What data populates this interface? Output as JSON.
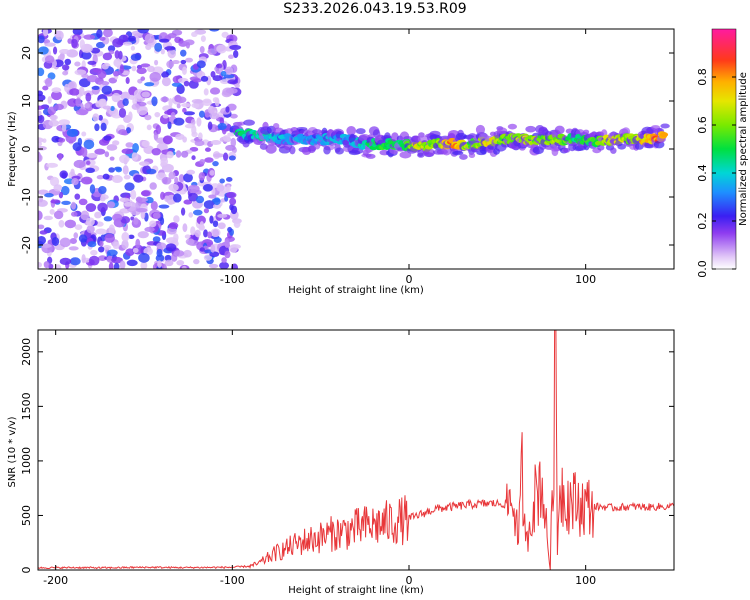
{
  "title": "S233.2026.043.19.53.R09",
  "chart_data": [
    {
      "type": "heatmap",
      "xlabel": "Height of straight line (km)",
      "ylabel": "Frequency (Hz)",
      "xlim": [
        -210,
        150
      ],
      "ylim": [
        -25,
        25
      ],
      "xticks": [
        -200,
        -100,
        0,
        100
      ],
      "yticks": [
        -20,
        -10,
        0,
        10,
        20
      ],
      "colorbar": {
        "label": "Normalized spectral amplitude",
        "range": [
          0,
          1
        ],
        "ticks": [
          0.0,
          0.2,
          0.4,
          0.6,
          0.8
        ],
        "tick_labels": [
          "0.0",
          "0.2",
          "0.4",
          "0.6",
          "0.8"
        ]
      },
      "noise_region": {
        "x": [
          -210,
          -97
        ],
        "freq": [
          -25,
          25
        ],
        "amplitude": [
          0.05,
          0.3
        ]
      },
      "ridge": [
        {
          "x": -97,
          "freq": 3,
          "amp": 0.5
        },
        {
          "x": -85,
          "freq": 3,
          "amp": 0.45
        },
        {
          "x": -75,
          "freq": 2,
          "amp": 0.4
        },
        {
          "x": -65,
          "freq": 2,
          "amp": 0.35
        },
        {
          "x": -55,
          "freq": 2,
          "amp": 0.35
        },
        {
          "x": -45,
          "freq": 2,
          "amp": 0.4
        },
        {
          "x": -35,
          "freq": 2,
          "amp": 0.35
        },
        {
          "x": -25,
          "freq": 1,
          "amp": 0.45
        },
        {
          "x": -15,
          "freq": 1,
          "amp": 0.55
        },
        {
          "x": -5,
          "freq": 1,
          "amp": 0.5
        },
        {
          "x": 5,
          "freq": 0.5,
          "amp": 0.7
        },
        {
          "x": 15,
          "freq": 1,
          "amp": 0.6
        },
        {
          "x": 25,
          "freq": 1,
          "amp": 0.85
        },
        {
          "x": 35,
          "freq": 1,
          "amp": 0.6
        },
        {
          "x": 45,
          "freq": 1.5,
          "amp": 0.75
        },
        {
          "x": 55,
          "freq": 2,
          "amp": 0.6
        },
        {
          "x": 65,
          "freq": 2,
          "amp": 0.7
        },
        {
          "x": 75,
          "freq": 2,
          "amp": 0.6
        },
        {
          "x": 85,
          "freq": 2,
          "amp": 0.65
        },
        {
          "x": 95,
          "freq": 2,
          "amp": 0.5
        },
        {
          "x": 105,
          "freq": 1.5,
          "amp": 0.55
        },
        {
          "x": 115,
          "freq": 2,
          "amp": 0.75
        },
        {
          "x": 125,
          "freq": 2,
          "amp": 0.65
        },
        {
          "x": 135,
          "freq": 2,
          "amp": 0.8
        },
        {
          "x": 145,
          "freq": 2.5,
          "amp": 0.9
        }
      ]
    },
    {
      "type": "line",
      "xlabel": "Height of straight line (km)",
      "ylabel": "SNR (10 * v/v)",
      "xlim": [
        -210,
        150
      ],
      "ylim": [
        0,
        2200
      ],
      "xticks": [
        -200,
        -100,
        0,
        100
      ],
      "yticks": [
        0,
        500,
        1000,
        1500,
        2000
      ],
      "series": [
        {
          "name": "SNR",
          "color": "#e8373a",
          "x": [
            -210,
            -190,
            -170,
            -150,
            -130,
            -110,
            -100,
            -90,
            -85,
            -80,
            -75,
            -70,
            -65,
            -60,
            -55,
            -50,
            -45,
            -40,
            -35,
            -30,
            -25,
            -20,
            -15,
            -10,
            -5,
            0,
            5,
            10,
            15,
            20,
            25,
            30,
            35,
            40,
            45,
            50,
            55,
            58,
            60,
            62,
            64,
            66,
            70,
            75,
            80,
            82,
            83,
            84,
            85,
            88,
            90,
            95,
            100,
            105,
            110,
            115,
            120,
            125,
            130,
            135,
            140,
            145,
            150
          ],
          "values": [
            20,
            22,
            20,
            25,
            22,
            24,
            25,
            35,
            60,
            110,
            160,
            190,
            230,
            260,
            280,
            300,
            330,
            340,
            360,
            380,
            400,
            410,
            420,
            440,
            450,
            470,
            500,
            530,
            560,
            570,
            580,
            590,
            600,
            605,
            610,
            610,
            600,
            650,
            560,
            250,
            900,
            200,
            600,
            850,
            0,
            1350,
            2200,
            150,
            800,
            700,
            650,
            610,
            590,
            580,
            580,
            570,
            575,
            580,
            580,
            575,
            580,
            580,
            585
          ]
        }
      ]
    }
  ]
}
